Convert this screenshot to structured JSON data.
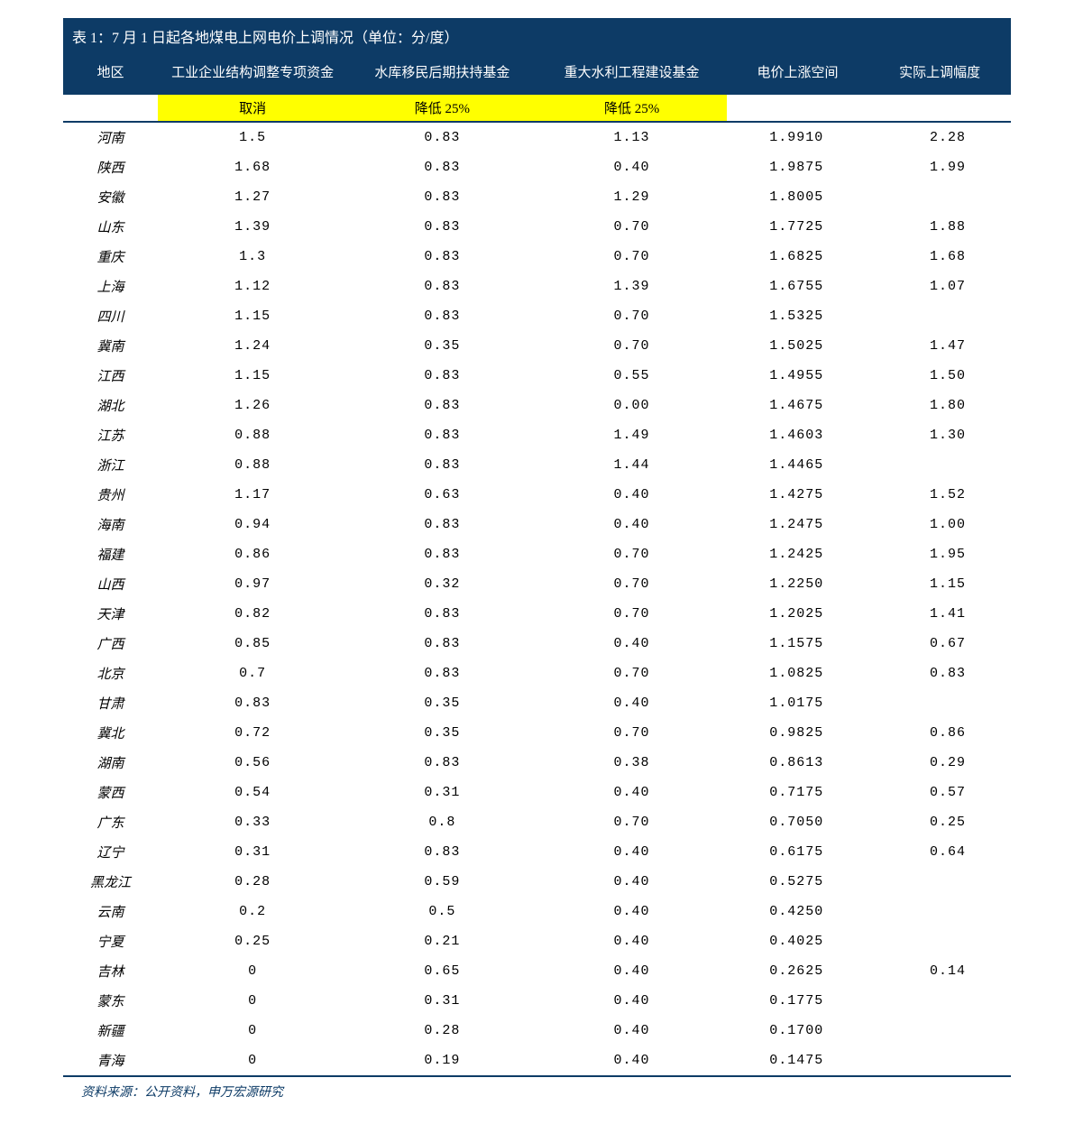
{
  "table": {
    "title": "表 1：7 月 1 日起各地煤电上网电价上调情况（单位：分/度）",
    "columns": [
      "地区",
      "工业企业结构调整专项资金",
      "水库移民后期扶持基金",
      "重大水利工程建设基金",
      "电价上涨空间",
      "实际上调幅度"
    ],
    "sub_labels": [
      "",
      "取消",
      "降低 25%",
      "降低 25%",
      "",
      ""
    ],
    "rows": [
      {
        "region": "河南",
        "c1": "1.5",
        "c2": "0.83",
        "c3": "1.13",
        "c4": "1.9910",
        "c5": "2.28"
      },
      {
        "region": "陕西",
        "c1": "1.68",
        "c2": "0.83",
        "c3": "0.40",
        "c4": "1.9875",
        "c5": "1.99"
      },
      {
        "region": "安徽",
        "c1": "1.27",
        "c2": "0.83",
        "c3": "1.29",
        "c4": "1.8005",
        "c5": ""
      },
      {
        "region": "山东",
        "c1": "1.39",
        "c2": "0.83",
        "c3": "0.70",
        "c4": "1.7725",
        "c5": "1.88"
      },
      {
        "region": "重庆",
        "c1": "1.3",
        "c2": "0.83",
        "c3": "0.70",
        "c4": "1.6825",
        "c5": "1.68"
      },
      {
        "region": "上海",
        "c1": "1.12",
        "c2": "0.83",
        "c3": "1.39",
        "c4": "1.6755",
        "c5": "1.07"
      },
      {
        "region": "四川",
        "c1": "1.15",
        "c2": "0.83",
        "c3": "0.70",
        "c4": "1.5325",
        "c5": ""
      },
      {
        "region": "冀南",
        "c1": "1.24",
        "c2": "0.35",
        "c3": "0.70",
        "c4": "1.5025",
        "c5": "1.47"
      },
      {
        "region": "江西",
        "c1": "1.15",
        "c2": "0.83",
        "c3": "0.55",
        "c4": "1.4955",
        "c5": "1.50"
      },
      {
        "region": "湖北",
        "c1": "1.26",
        "c2": "0.83",
        "c3": "0.00",
        "c4": "1.4675",
        "c5": "1.80"
      },
      {
        "region": "江苏",
        "c1": "0.88",
        "c2": "0.83",
        "c3": "1.49",
        "c4": "1.4603",
        "c5": "1.30"
      },
      {
        "region": "浙江",
        "c1": "0.88",
        "c2": "0.83",
        "c3": "1.44",
        "c4": "1.4465",
        "c5": ""
      },
      {
        "region": "贵州",
        "c1": "1.17",
        "c2": "0.63",
        "c3": "0.40",
        "c4": "1.4275",
        "c5": "1.52"
      },
      {
        "region": "海南",
        "c1": "0.94",
        "c2": "0.83",
        "c3": "0.40",
        "c4": "1.2475",
        "c5": "1.00"
      },
      {
        "region": "福建",
        "c1": "0.86",
        "c2": "0.83",
        "c3": "0.70",
        "c4": "1.2425",
        "c5": "1.95"
      },
      {
        "region": "山西",
        "c1": "0.97",
        "c2": "0.32",
        "c3": "0.70",
        "c4": "1.2250",
        "c5": "1.15"
      },
      {
        "region": "天津",
        "c1": "0.82",
        "c2": "0.83",
        "c3": "0.70",
        "c4": "1.2025",
        "c5": "1.41"
      },
      {
        "region": "广西",
        "c1": "0.85",
        "c2": "0.83",
        "c3": "0.40",
        "c4": "1.1575",
        "c5": "0.67"
      },
      {
        "region": "北京",
        "c1": "0.7",
        "c2": "0.83",
        "c3": "0.70",
        "c4": "1.0825",
        "c5": "0.83"
      },
      {
        "region": "甘肃",
        "c1": "0.83",
        "c2": "0.35",
        "c3": "0.40",
        "c4": "1.0175",
        "c5": ""
      },
      {
        "region": "冀北",
        "c1": "0.72",
        "c2": "0.35",
        "c3": "0.70",
        "c4": "0.9825",
        "c5": "0.86"
      },
      {
        "region": "湖南",
        "c1": "0.56",
        "c2": "0.83",
        "c3": "0.38",
        "c4": "0.8613",
        "c5": "0.29"
      },
      {
        "region": "蒙西",
        "c1": "0.54",
        "c2": "0.31",
        "c3": "0.40",
        "c4": "0.7175",
        "c5": "0.57"
      },
      {
        "region": "广东",
        "c1": "0.33",
        "c2": "0.8",
        "c3": "0.70",
        "c4": "0.7050",
        "c5": "0.25"
      },
      {
        "region": "辽宁",
        "c1": "0.31",
        "c2": "0.83",
        "c3": "0.40",
        "c4": "0.6175",
        "c5": "0.64"
      },
      {
        "region": "黑龙江",
        "c1": "0.28",
        "c2": "0.59",
        "c3": "0.40",
        "c4": "0.5275",
        "c5": ""
      },
      {
        "region": "云南",
        "c1": "0.2",
        "c2": "0.5",
        "c3": "0.40",
        "c4": "0.4250",
        "c5": ""
      },
      {
        "region": "宁夏",
        "c1": "0.25",
        "c2": "0.21",
        "c3": "0.40",
        "c4": "0.4025",
        "c5": ""
      },
      {
        "region": "吉林",
        "c1": "0",
        "c2": "0.65",
        "c3": "0.40",
        "c4": "0.2625",
        "c5": "0.14"
      },
      {
        "region": "蒙东",
        "c1": "0",
        "c2": "0.31",
        "c3": "0.40",
        "c4": "0.1775",
        "c5": ""
      },
      {
        "region": "新疆",
        "c1": "0",
        "c2": "0.28",
        "c3": "0.40",
        "c4": "0.1700",
        "c5": ""
      },
      {
        "region": "青海",
        "c1": "0",
        "c2": "0.19",
        "c3": "0.40",
        "c4": "0.1475",
        "c5": ""
      }
    ],
    "source": "资料来源：公开资料，申万宏源研究",
    "colors": {
      "header_bg": "#0d3b66",
      "header_text": "#ffffff",
      "highlight": "#ffff00",
      "text": "#000000",
      "source_text": "#0d3b66"
    }
  }
}
